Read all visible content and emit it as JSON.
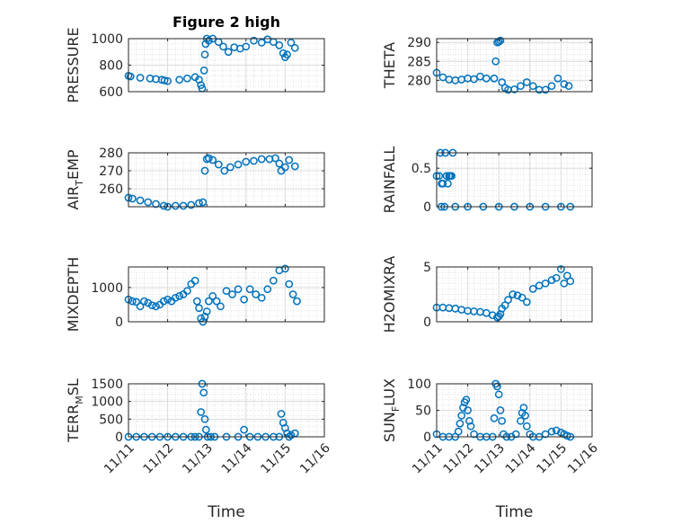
{
  "figure": {
    "title": "Figure 2 high",
    "marker_color": "#0072BD",
    "x_axis_label": "Time",
    "x_tick_labels": [
      "11/11",
      "11/12",
      "11/13",
      "11/14",
      "11/15",
      "11/16"
    ]
  },
  "chart_data": [
    {
      "type": "scatter",
      "name": "pressure-plot",
      "title": "Figure 2 high",
      "ylabel": "PRESSURE",
      "xlabel": "",
      "xlim": [
        0,
        5
      ],
      "ylim": [
        600,
        1000
      ],
      "yticks": [
        600,
        800,
        1000
      ],
      "grid": true,
      "marker": "open-circle",
      "segments": [
        {
          "x": [
            0,
            0.05,
            0.3,
            0.55,
            0.7,
            0.85,
            0.92
          ],
          "y": [
            720,
            715,
            705,
            700,
            695,
            690,
            685
          ]
        },
        {
          "x": [
            1.0,
            1.3,
            1.5,
            1.7,
            1.8,
            1.85,
            1.88,
            1.93,
            1.95,
            1.97,
            2.0
          ],
          "y": [
            680,
            690,
            700,
            710,
            690,
            650,
            625,
            760,
            880,
            960,
            1000
          ]
        },
        {
          "x": [
            2.05,
            2.15,
            2.3,
            2.42,
            2.55,
            2.7,
            2.85,
            3.0,
            3.2,
            3.4,
            3.55
          ],
          "y": [
            985,
            1000,
            975,
            940,
            900,
            935,
            925,
            940,
            985,
            970,
            995
          ]
        },
        {
          "x": [
            3.7,
            3.85,
            3.95,
            4.0,
            4.05,
            4.15,
            4.25
          ],
          "y": [
            975,
            950,
            890,
            860,
            880,
            970,
            930
          ]
        }
      ]
    },
    {
      "type": "scatter",
      "name": "theta-plot",
      "ylabel": "THETA",
      "xlabel": "",
      "xlim": [
        0,
        5
      ],
      "ylim": [
        277,
        291
      ],
      "yticks": [
        280,
        285,
        290
      ],
      "grid": true,
      "marker": "open-circle",
      "segments": [
        {
          "x": [
            0,
            0.2,
            0.4,
            0.6,
            0.8,
            1.0,
            1.2,
            1.4,
            1.6
          ],
          "y": [
            282,
            280.8,
            280.2,
            280,
            280.2,
            280.5,
            280.3,
            281,
            280.5
          ]
        },
        {
          "x": [
            1.85,
            1.9,
            1.95,
            2.0,
            2.05
          ],
          "y": [
            280.5,
            285,
            290,
            290.2,
            290.5
          ]
        },
        {
          "x": [
            2.1,
            2.2,
            2.3,
            2.5,
            2.7,
            2.9,
            3.1,
            3.3,
            3.5,
            3.7,
            3.9,
            4.1,
            4.25
          ],
          "y": [
            279.5,
            278,
            277.5,
            277.6,
            278.5,
            279.5,
            278.5,
            277.5,
            277.5,
            278.5,
            280.5,
            279,
            278.5
          ]
        }
      ]
    },
    {
      "type": "scatter",
      "name": "air-temp-plot",
      "ylabel": "AIR_TEMP",
      "ylabel_main": "AIR",
      "ylabel_sub": "T",
      "ylabel_rest": "EMP",
      "xlabel": "",
      "xlim": [
        0,
        5
      ],
      "ylim": [
        250,
        280
      ],
      "yticks": [
        260,
        270,
        280
      ],
      "grid": true,
      "marker": "open-circle",
      "segments": [
        {
          "x": [
            0,
            0.1,
            0.3,
            0.5,
            0.7,
            0.9,
            1.0,
            1.2,
            1.4,
            1.6,
            1.8,
            1.9
          ],
          "y": [
            255,
            254.5,
            253.5,
            252.5,
            251.5,
            250.5,
            250,
            250.5,
            250.5,
            251,
            252,
            252.5
          ]
        },
        {
          "x": [
            1.95,
            2.0,
            2.05,
            2.15,
            2.3,
            2.45,
            2.6,
            2.8,
            3.0,
            3.2,
            3.4,
            3.6,
            3.75,
            3.85,
            3.9,
            4.0,
            4.1,
            4.25
          ],
          "y": [
            270,
            276.5,
            277,
            276,
            273.5,
            270,
            272,
            273.5,
            275,
            275.5,
            276.5,
            276.5,
            277,
            274,
            270,
            272,
            276,
            272.5
          ]
        }
      ]
    },
    {
      "type": "scatter",
      "name": "rainfall-plot",
      "ylabel": "RAINFALL",
      "xlabel": "",
      "xlim": [
        0,
        5
      ],
      "ylim": [
        0,
        0.7
      ],
      "yticks": [
        0,
        0.5
      ],
      "grid": true,
      "marker": "open-circle",
      "segments": [
        {
          "x": [
            0.0,
            0.08,
            0.12,
            0.16,
            0.2,
            0.28,
            0.32,
            0.36,
            0.4,
            0.44,
            0.48,
            0.52
          ],
          "y": [
            0.4,
            0.4,
            0.7,
            0.3,
            0.3,
            0.7,
            0.4,
            0.3,
            0.4,
            0.4,
            0.4,
            0.7
          ]
        },
        {
          "x": [
            0.15,
            0.25,
            0.6,
            1.0,
            1.5,
            2.0,
            2.5,
            3.0,
            3.5,
            4.0,
            4.3
          ],
          "y": [
            0,
            0,
            0,
            0,
            0,
            0,
            0,
            0,
            0,
            0,
            0
          ]
        }
      ]
    },
    {
      "type": "scatter",
      "name": "mixdepth-plot",
      "ylabel": "MIXDEPTH",
      "xlabel": "",
      "xlim": [
        0,
        5
      ],
      "ylim": [
        0,
        1600
      ],
      "yticks": [
        0,
        1000
      ],
      "grid": true,
      "marker": "open-circle",
      "segments": [
        {
          "x": [
            0,
            0.1,
            0.2,
            0.3,
            0.4,
            0.5,
            0.6,
            0.7,
            0.8,
            0.9,
            1.0,
            1.1,
            1.2,
            1.3,
            1.4,
            1.5,
            1.6,
            1.7
          ],
          "y": [
            650,
            600,
            580,
            450,
            600,
            550,
            480,
            450,
            500,
            600,
            650,
            600,
            700,
            750,
            800,
            900,
            1100,
            1200
          ]
        },
        {
          "x": [
            1.75,
            1.8,
            1.85,
            1.9,
            1.95,
            2.0,
            2.05,
            2.15,
            2.25,
            2.35,
            2.5,
            2.65,
            2.8,
            2.95,
            3.1,
            3.25,
            3.4,
            3.55,
            3.7,
            3.85,
            4.0,
            4.1,
            4.2,
            4.3
          ],
          "y": [
            600,
            400,
            100,
            0,
            150,
            300,
            600,
            750,
            600,
            450,
            900,
            800,
            950,
            650,
            950,
            800,
            700,
            950,
            1200,
            1500,
            1550,
            1100,
            800,
            600
          ]
        }
      ]
    },
    {
      "type": "scatter",
      "name": "h2omixra-plot",
      "ylabel": "H2OMIXRA",
      "xlabel": "",
      "xlim": [
        0,
        5
      ],
      "ylim": [
        0,
        5
      ],
      "yticks": [
        0,
        5
      ],
      "grid": true,
      "marker": "open-circle",
      "segments": [
        {
          "x": [
            0,
            0.2,
            0.4,
            0.6,
            0.8,
            1.0,
            1.2,
            1.4,
            1.6,
            1.8,
            1.95
          ],
          "y": [
            1.3,
            1.3,
            1.25,
            1.2,
            1.1,
            1.0,
            0.95,
            0.9,
            0.8,
            0.6,
            0.4
          ]
        },
        {
          "x": [
            2.0,
            2.05,
            2.1,
            2.2,
            2.3,
            2.45,
            2.6,
            2.75,
            2.9,
            3.1,
            3.3,
            3.5,
            3.7,
            3.85,
            4.0,
            4.1,
            4.2,
            4.3
          ],
          "y": [
            0.5,
            0.7,
            1.2,
            1.5,
            2.0,
            2.5,
            2.4,
            2.2,
            1.8,
            3.0,
            3.3,
            3.5,
            3.8,
            4.0,
            4.8,
            3.5,
            4.2,
            3.7
          ]
        }
      ]
    },
    {
      "type": "scatter",
      "name": "terr-msl-plot",
      "ylabel": "TERR_MSL",
      "ylabel_main": "TERR",
      "ylabel_sub": "M",
      "ylabel_rest": "SL",
      "xlabel": "",
      "xlim": [
        0,
        5
      ],
      "ylim": [
        0,
        1500
      ],
      "yticks": [
        0,
        500,
        1000,
        1500
      ],
      "grid": true,
      "marker": "open-circle",
      "segments": [
        {
          "x": [
            0,
            0.2,
            0.4,
            0.6,
            0.8,
            1.0,
            1.2,
            1.4,
            1.6,
            1.7
          ],
          "y": [
            0,
            0,
            0,
            0,
            0,
            0,
            0,
            0,
            0,
            0
          ]
        },
        {
          "x": [
            1.8,
            1.85,
            1.88,
            1.92,
            1.95,
            1.98,
            2.02,
            2.1,
            2.2,
            2.5,
            2.8,
            2.95,
            3.1,
            3.3,
            3.5,
            3.7,
            3.85,
            3.9,
            3.95,
            4.0,
            4.05,
            4.1,
            4.15,
            4.25
          ],
          "y": [
            0,
            700,
            1500,
            1250,
            500,
            200,
            0,
            0,
            0,
            0,
            0,
            200,
            0,
            0,
            0,
            0,
            0,
            650,
            400,
            250,
            100,
            0,
            50,
            100
          ]
        }
      ]
    },
    {
      "type": "scatter",
      "name": "sun-flux-plot",
      "ylabel": "SUN_FLUX",
      "ylabel_main": "SUN",
      "ylabel_sub": "F",
      "ylabel_rest": "LUX",
      "xlabel": "",
      "xlim": [
        0,
        5
      ],
      "ylim": [
        0,
        100
      ],
      "yticks": [
        0,
        50,
        100
      ],
      "grid": true,
      "marker": "open-circle",
      "segments": [
        {
          "x": [
            0,
            0.2,
            0.4,
            0.6,
            0.7,
            0.75,
            0.8,
            0.85,
            0.9,
            0.95,
            1.0,
            1.05,
            1.1,
            1.2,
            1.4,
            1.6,
            1.8
          ],
          "y": [
            5,
            0,
            0,
            0,
            10,
            25,
            40,
            55,
            65,
            70,
            50,
            30,
            20,
            5,
            0,
            0,
            0
          ]
        },
        {
          "x": [
            1.85,
            1.9,
            1.95,
            2.0,
            2.05,
            2.1,
            2.15,
            2.25,
            2.4,
            2.55,
            2.7,
            2.75,
            2.8,
            2.85,
            2.9,
            3.0,
            3.1,
            3.3,
            3.5,
            3.7,
            3.85,
            4.0,
            4.1,
            4.2,
            4.3
          ],
          "y": [
            35,
            100,
            95,
            80,
            50,
            30,
            5,
            0,
            0,
            5,
            30,
            45,
            55,
            40,
            20,
            5,
            0,
            0,
            5,
            10,
            12,
            8,
            5,
            2,
            0
          ]
        }
      ]
    }
  ]
}
